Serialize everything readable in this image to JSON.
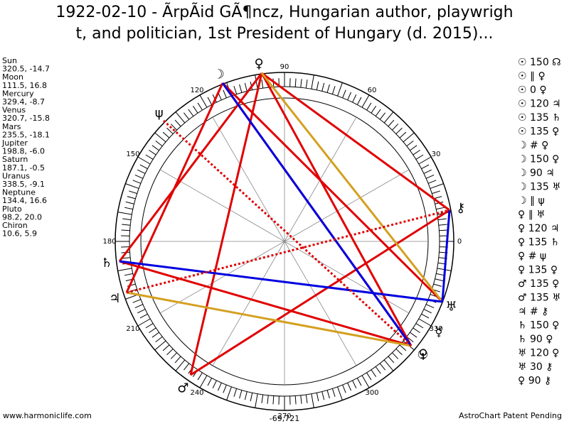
{
  "header": {
    "title_lines": [
      "1922-02-10 - ÃrpÃid GÃ¶ncz, Hungarian author, playwrigh",
      "t, and politician, 1st President of Hungary (d. 2015)..."
    ]
  },
  "planets": [
    {
      "name": "Sun",
      "glyph": "☉",
      "position": {
        "value": 320.5,
        "label": "320.5, -14.7"
      }
    },
    {
      "name": "Moon",
      "glyph": "☽",
      "position": {
        "value": 111.5,
        "label": "111.5, 16.8"
      }
    },
    {
      "name": "Mercury",
      "glyph": "☿",
      "position": {
        "value": 329.4,
        "label": "329.4, -8.7"
      }
    },
    {
      "name": "Venus",
      "glyph": "♀",
      "position": {
        "value": 320.7,
        "label": "320.7, -15.8"
      }
    },
    {
      "name": "Mars",
      "glyph": "♂",
      "position": {
        "value": 235.5,
        "label": "235.5, -18.1"
      }
    },
    {
      "name": "Jupiter",
      "glyph": "♃",
      "position": {
        "value": 198.8,
        "label": "198.8, -6.0"
      }
    },
    {
      "name": "Saturn",
      "glyph": "♄",
      "position": {
        "value": 187.1,
        "label": "187.1, -0.5"
      }
    },
    {
      "name": "Uranus",
      "glyph": "♅",
      "position": {
        "value": 338.5,
        "label": "338.5, -9.1"
      }
    },
    {
      "name": "Neptune",
      "glyph": "ψ",
      "position": {
        "value": 134.4,
        "label": "134.4, 16.6"
      }
    },
    {
      "name": "Pluto",
      "glyph": "♀",
      "position": {
        "value": 98.2,
        "label": "98.2, 20.0"
      }
    },
    {
      "name": "Chiron",
      "glyph": "⚷",
      "position": {
        "value": 10.6,
        "label": "10.6, 5.9"
      }
    }
  ],
  "degrees": [
    0,
    30,
    60,
    90,
    120,
    150,
    180,
    210,
    240,
    270,
    300,
    330
  ],
  "aspects": [
    "☉ 150 ☊",
    "☉ ∥ ♀",
    "☉ 0 ♀",
    "☉ 120 ♃",
    "☉ 135 ♄",
    "☉ 135 ♀",
    "☽ # ♀",
    "☽ 150 ♀",
    "☽ 90 ♃",
    "☽ 135 ♅",
    "☽ ∥ ψ",
    "♀ ∥ ♅",
    "♀ 120 ♃",
    "♀ 135 ♄",
    "♀ # ψ",
    "♀ 135 ♀",
    "♂ 135 ♀",
    "♂ 135 ♅",
    "♃ # ⚷",
    "♄ 150 ♀",
    "♄ 90 ♀",
    "♅ 120 ♀",
    "♅ 30 ⚷",
    "♀ 90 ⚷"
  ],
  "footer": {
    "left": "www.harmoniclife.com",
    "center": "-69,721",
    "right": "AstroChart Patent Pending"
  }
}
